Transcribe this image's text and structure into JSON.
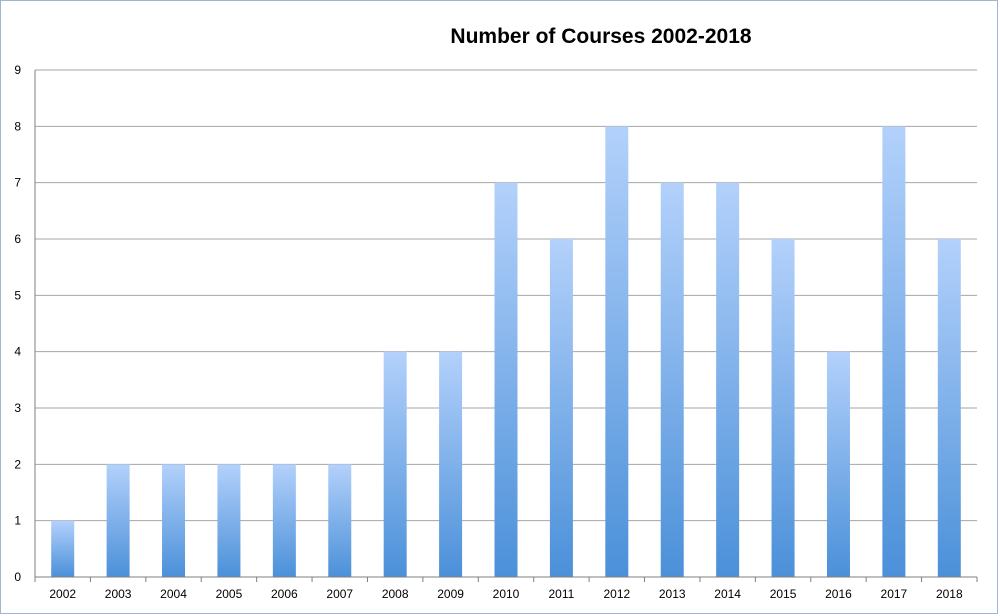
{
  "chart_data": {
    "type": "bar",
    "title": "Number of Courses 2002-2018",
    "xlabel": "",
    "ylabel": "",
    "categories": [
      "2002",
      "2003",
      "2004",
      "2005",
      "2006",
      "2007",
      "2008",
      "2009",
      "2010",
      "2011",
      "2012",
      "2013",
      "2014",
      "2015",
      "2016",
      "2017",
      "2018"
    ],
    "values": [
      1,
      2,
      2,
      2,
      2,
      2,
      4,
      4,
      7,
      6,
      8,
      7,
      7,
      6,
      4,
      8,
      6
    ],
    "ylim": [
      0,
      9
    ],
    "yticks": [
      0,
      1,
      2,
      3,
      4,
      5,
      6,
      7,
      8,
      9
    ],
    "grid": true,
    "legend": "none",
    "colors": {
      "bar_top": "#b3d1fb",
      "bar_bottom": "#4b90d9",
      "grid": "#a6a6a6",
      "axis": "#7f7f7f"
    }
  }
}
